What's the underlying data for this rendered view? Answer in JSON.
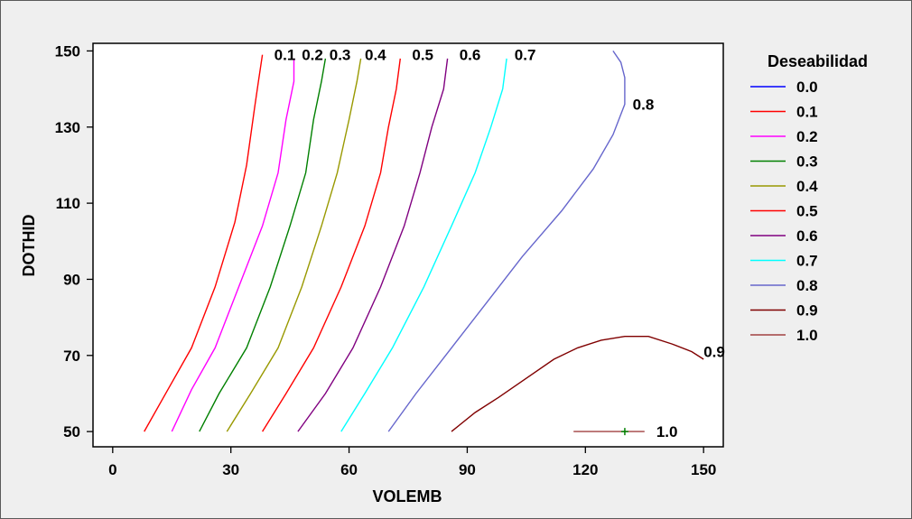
{
  "chart_data": {
    "type": "contour",
    "xlabel": "VOLEMB",
    "ylabel": "DOTHID",
    "xlim": [
      -5,
      155
    ],
    "ylim": [
      46,
      152
    ],
    "xticks": [
      "0",
      "30",
      "60",
      "90",
      "120",
      "150"
    ],
    "yticks": [
      "50",
      "70",
      "90",
      "110",
      "130",
      "150"
    ],
    "legend": {
      "title": "Deseabilidad",
      "entries": [
        {
          "label": "0.0",
          "color": "#0000ff"
        },
        {
          "label": "0.1",
          "color": "#ff0000"
        },
        {
          "label": "0.2",
          "color": "#ff00ff"
        },
        {
          "label": "0.3",
          "color": "#008000"
        },
        {
          "label": "0.4",
          "color": "#999900"
        },
        {
          "label": "0.5",
          "color": "#ff0000"
        },
        {
          "label": "0.6",
          "color": "#800080"
        },
        {
          "label": "0.7",
          "color": "#00ffff"
        },
        {
          "label": "0.8",
          "color": "#6666cc"
        },
        {
          "label": "0.9",
          "color": "#800000"
        },
        {
          "label": "1.0",
          "color": "#a04040"
        }
      ]
    },
    "contours": [
      {
        "level": "0.1",
        "color": "#ff0000",
        "points": [
          [
            8,
            50
          ],
          [
            14,
            61
          ],
          [
            20,
            72
          ],
          [
            26,
            88
          ],
          [
            31,
            105
          ],
          [
            34,
            120
          ],
          [
            36,
            135
          ],
          [
            37,
            142
          ],
          [
            38,
            149
          ]
        ]
      },
      {
        "level": "0.2",
        "color": "#ff00ff",
        "points": [
          [
            15,
            50
          ],
          [
            20,
            61
          ],
          [
            26,
            72
          ],
          [
            32,
            88
          ],
          [
            38,
            104
          ],
          [
            42,
            118
          ],
          [
            44,
            132
          ],
          [
            46,
            142
          ],
          [
            46,
            148
          ]
        ]
      },
      {
        "level": "0.3",
        "color": "#008000",
        "points": [
          [
            22,
            50
          ],
          [
            27,
            60
          ],
          [
            34,
            72
          ],
          [
            40,
            88
          ],
          [
            45,
            104
          ],
          [
            49,
            118
          ],
          [
            51,
            132
          ],
          [
            53,
            142
          ],
          [
            54,
            148
          ]
        ]
      },
      {
        "level": "0.4",
        "color": "#999900",
        "points": [
          [
            29,
            50
          ],
          [
            35,
            60
          ],
          [
            42,
            72
          ],
          [
            48,
            88
          ],
          [
            53,
            104
          ],
          [
            57,
            118
          ],
          [
            60,
            132
          ],
          [
            62,
            142
          ],
          [
            63,
            148
          ]
        ]
      },
      {
        "level": "0.5",
        "color": "#ff0000",
        "points": [
          [
            38,
            50
          ],
          [
            44,
            60
          ],
          [
            51,
            72
          ],
          [
            58,
            88
          ],
          [
            64,
            104
          ],
          [
            68,
            118
          ],
          [
            70,
            130
          ],
          [
            72,
            140
          ],
          [
            73,
            148
          ]
        ]
      },
      {
        "level": "0.6",
        "color": "#800080",
        "points": [
          [
            47,
            50
          ],
          [
            54,
            60
          ],
          [
            61,
            72
          ],
          [
            68,
            88
          ],
          [
            74,
            104
          ],
          [
            78,
            118
          ],
          [
            81,
            130
          ],
          [
            84,
            140
          ],
          [
            85,
            148
          ]
        ]
      },
      {
        "level": "0.7",
        "color": "#00ffff",
        "points": [
          [
            58,
            50
          ],
          [
            64,
            60
          ],
          [
            71,
            72
          ],
          [
            79,
            88
          ],
          [
            86,
            104
          ],
          [
            92,
            118
          ],
          [
            96,
            130
          ],
          [
            99,
            140
          ],
          [
            100,
            148
          ]
        ]
      },
      {
        "level": "0.8",
        "color": "#6666cc",
        "points": [
          [
            70,
            50
          ],
          [
            77,
            60
          ],
          [
            86,
            72
          ],
          [
            95,
            84
          ],
          [
            104,
            96
          ],
          [
            114,
            108
          ],
          [
            122,
            119
          ],
          [
            127,
            128
          ],
          [
            130,
            136
          ],
          [
            130,
            143
          ],
          [
            129,
            147
          ],
          [
            127,
            150
          ]
        ]
      },
      {
        "level": "0.9",
        "color": "#800000",
        "points": [
          [
            86,
            50
          ],
          [
            92,
            55
          ],
          [
            98,
            59
          ],
          [
            105,
            64
          ],
          [
            112,
            69
          ],
          [
            118,
            72
          ],
          [
            124,
            74
          ],
          [
            130,
            75
          ],
          [
            136,
            75
          ],
          [
            142,
            73
          ],
          [
            147,
            71
          ],
          [
            150,
            69
          ]
        ]
      },
      {
        "level": "1.0",
        "color": "#a04040",
        "points": [
          [
            117,
            50
          ],
          [
            135,
            50
          ]
        ]
      }
    ],
    "contour_labels": [
      {
        "text": "0.1",
        "x": 41,
        "y": 149
      },
      {
        "text": "0.2",
        "x": 48,
        "y": 149
      },
      {
        "text": "0.3",
        "x": 55,
        "y": 149
      },
      {
        "text": "0.4",
        "x": 64,
        "y": 149
      },
      {
        "text": "0.5",
        "x": 76,
        "y": 149
      },
      {
        "text": "0.6",
        "x": 88,
        "y": 149
      },
      {
        "text": "0.7",
        "x": 102,
        "y": 149
      },
      {
        "text": "0.8",
        "x": 132,
        "y": 136
      },
      {
        "text": "0.9",
        "x": 150,
        "y": 71
      },
      {
        "text": "1.0",
        "x": 138,
        "y": 50
      }
    ],
    "optimum": {
      "x": 130,
      "y": 50,
      "color": "#008000"
    }
  }
}
